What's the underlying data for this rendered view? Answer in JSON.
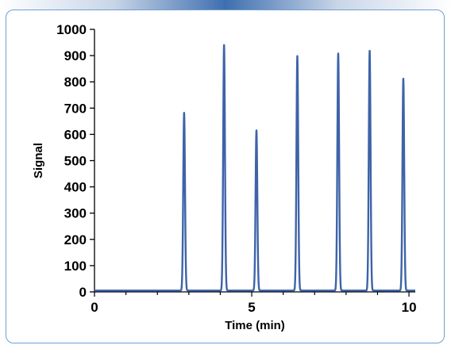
{
  "chart_data": {
    "type": "line",
    "title": "",
    "xlabel": "Time (min)",
    "ylabel": "Signal",
    "xlim": [
      0,
      10.2
    ],
    "ylim": [
      0,
      1000
    ],
    "x_ticks": [
      0,
      5,
      10
    ],
    "y_ticks": [
      0,
      100,
      200,
      300,
      400,
      500,
      600,
      700,
      800,
      900,
      1000
    ],
    "grid": false,
    "legend": "none",
    "line_color": "#3e63a8",
    "baseline": 5,
    "peaks": [
      {
        "x": 2.85,
        "y": 682
      },
      {
        "x": 4.12,
        "y": 940
      },
      {
        "x": 5.15,
        "y": 615
      },
      {
        "x": 6.45,
        "y": 898
      },
      {
        "x": 7.75,
        "y": 908
      },
      {
        "x": 8.75,
        "y": 918
      },
      {
        "x": 9.82,
        "y": 812
      }
    ],
    "peak_width_min": 0.028
  }
}
